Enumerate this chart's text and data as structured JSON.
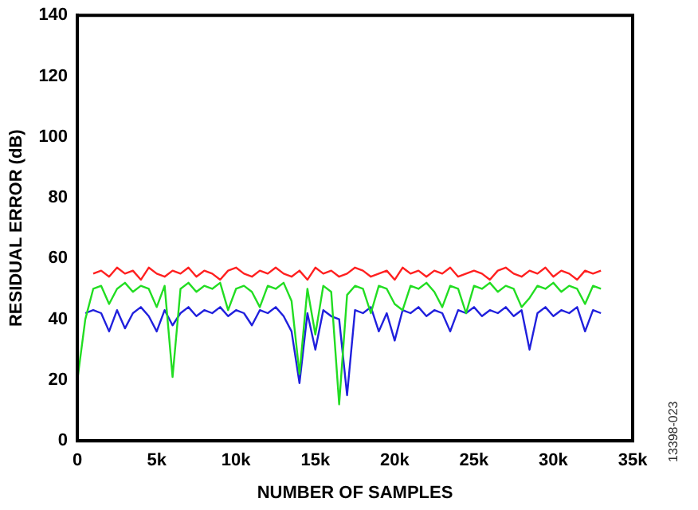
{
  "chart_data": {
    "type": "line",
    "xlabel": "NUMBER OF SAMPLES",
    "ylabel": "RESIDUAL ERROR (dB)",
    "annotations": [
      "13398-023"
    ],
    "x": [
      0,
      500,
      1000,
      1500,
      2000,
      2500,
      3000,
      3500,
      4000,
      4500,
      5000,
      5500,
      6000,
      6500,
      7000,
      7500,
      8000,
      8500,
      9000,
      9500,
      10000,
      10500,
      11000,
      11500,
      12000,
      12500,
      13000,
      13500,
      14000,
      14500,
      15000,
      15500,
      16000,
      16500,
      17000,
      17500,
      18000,
      18500,
      19000,
      19500,
      20000,
      20500,
      21000,
      21500,
      22000,
      22500,
      23000,
      23500,
      24000,
      24500,
      25000,
      25500,
      26000,
      26500,
      27000,
      27500,
      28000,
      28500,
      29000,
      29500,
      30000,
      30500,
      31000,
      31500,
      32000,
      32500,
      33000
    ],
    "series": [
      {
        "color": "#ff2020",
        "values": [
          null,
          null,
          55,
          56,
          54,
          57,
          55,
          56,
          53,
          57,
          55,
          54,
          56,
          55,
          57,
          54,
          56,
          55,
          53,
          56,
          57,
          55,
          54,
          56,
          55,
          57,
          55,
          54,
          56,
          53,
          57,
          55,
          56,
          54,
          55,
          57,
          56,
          54,
          55,
          56,
          53,
          57,
          55,
          56,
          54,
          56,
          55,
          57,
          54,
          55,
          56,
          55,
          53,
          56,
          57,
          55,
          54,
          56,
          55,
          57,
          54,
          56,
          55,
          53,
          56,
          55,
          56
        ]
      },
      {
        "color": "#22dd22",
        "values": [
          20,
          40,
          50,
          51,
          45,
          50,
          52,
          49,
          51,
          50,
          44,
          51,
          21,
          50,
          52,
          49,
          51,
          50,
          52,
          43,
          50,
          51,
          49,
          44,
          51,
          50,
          52,
          46,
          22,
          50,
          35,
          51,
          49,
          12,
          48,
          51,
          50,
          42,
          51,
          50,
          45,
          43,
          51,
          50,
          52,
          49,
          44,
          51,
          50,
          42,
          51,
          50,
          52,
          49,
          51,
          50,
          44,
          47,
          51,
          50,
          52,
          49,
          51,
          50,
          45,
          51,
          50
        ]
      },
      {
        "color": "#2020dd",
        "values": [
          null,
          42,
          43,
          42,
          36,
          43,
          37,
          42,
          44,
          41,
          36,
          43,
          38,
          42,
          44,
          41,
          43,
          42,
          44,
          41,
          43,
          42,
          38,
          43,
          42,
          44,
          41,
          36,
          19,
          42,
          30,
          43,
          41,
          40,
          15,
          43,
          42,
          44,
          36,
          42,
          33,
          43,
          42,
          44,
          41,
          43,
          42,
          36,
          43,
          42,
          44,
          41,
          43,
          42,
          44,
          41,
          43,
          30,
          42,
          44,
          41,
          43,
          42,
          44,
          36,
          43,
          42
        ]
      }
    ],
    "xlim": [
      0,
      35000
    ],
    "xticks": [
      0,
      {
        "value": 5000,
        "label": "5k"
      },
      {
        "value": 10000,
        "label": "10k"
      },
      {
        "value": 15000,
        "label": "15k"
      },
      {
        "value": 20000,
        "label": "20k"
      },
      {
        "value": 25000,
        "label": "25k"
      },
      {
        "value": 30000,
        "label": "30k"
      },
      {
        "value": 35000,
        "label": "35k"
      }
    ],
    "ylim": [
      0,
      140
    ],
    "yticks": [
      0,
      20,
      40,
      60,
      80,
      100,
      120,
      140
    ],
    "grid": false,
    "legend": false,
    "marker": "none",
    "line_style": "solid"
  }
}
